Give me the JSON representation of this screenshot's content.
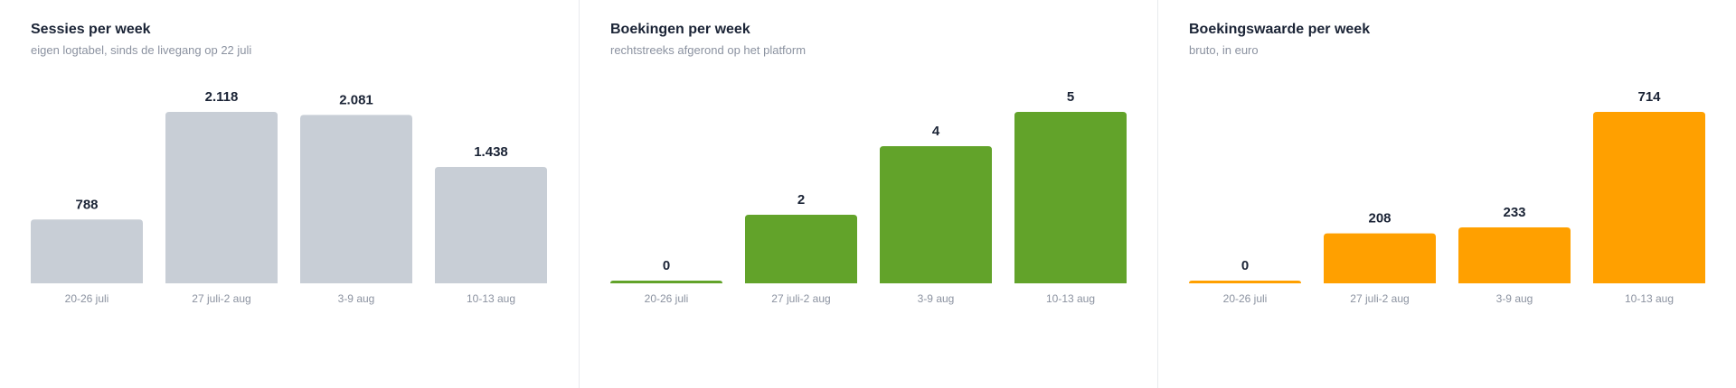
{
  "chart_data": [
    {
      "type": "bar",
      "title": "Sessies per week",
      "subtitle": "eigen logtabel, sinds de livegang op 22 juli",
      "categories": [
        "20-26 juli",
        "27 juli-2 aug",
        "3-9 aug",
        "10-13 aug"
      ],
      "values": [
        788,
        2118,
        2081,
        1438
      ],
      "value_labels": [
        "788",
        "2.118",
        "2.081",
        "1.438"
      ],
      "color": "#c8ced6",
      "grid": false,
      "legend": "none"
    },
    {
      "type": "bar",
      "title": "Boekingen per week",
      "subtitle": "rechtstreeks afgerond op het platform",
      "categories": [
        "20-26 juli",
        "27 juli-2 aug",
        "3-9 aug",
        "10-13 aug"
      ],
      "values": [
        0,
        2,
        4,
        5
      ],
      "value_labels": [
        "0",
        "2",
        "4",
        "5"
      ],
      "color": "#62a32a",
      "grid": false,
      "legend": "none"
    },
    {
      "type": "bar",
      "title": "Boekingswaarde per week",
      "subtitle": "bruto, in euro",
      "categories": [
        "20-26 juli",
        "27 juli-2 aug",
        "3-9 aug",
        "10-13 aug"
      ],
      "values": [
        0,
        208,
        233,
        714
      ],
      "value_labels": [
        "0",
        "208",
        "233",
        "714"
      ],
      "color": "#ffa000",
      "grid": false,
      "legend": "none"
    }
  ]
}
